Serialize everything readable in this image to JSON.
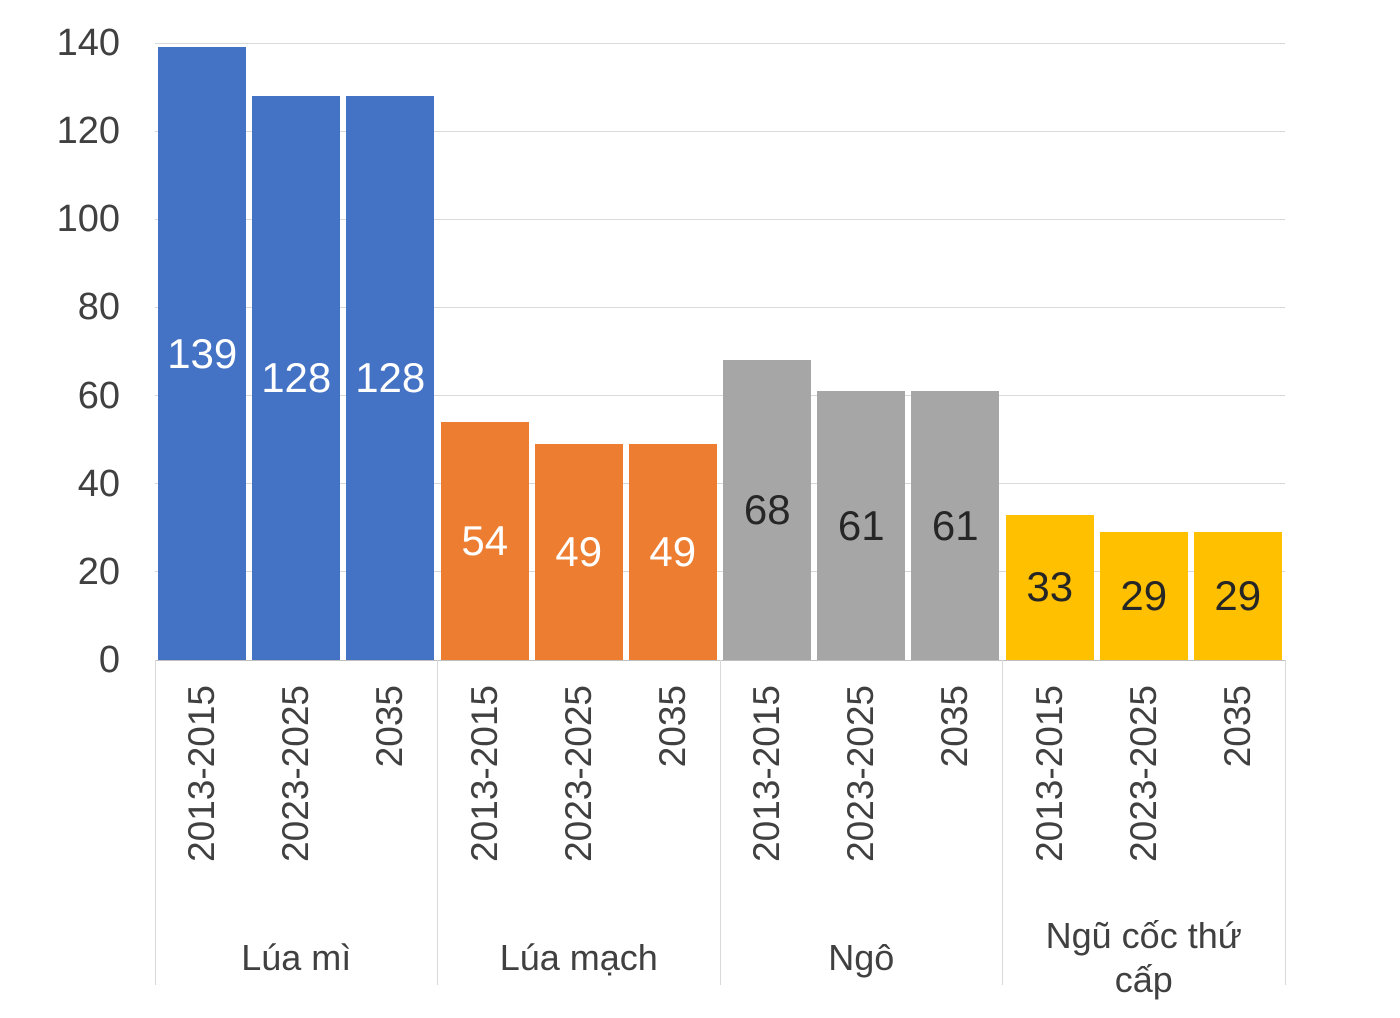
{
  "chart_data": {
    "type": "bar",
    "title": "",
    "categories": [
      "2013-2015",
      "2023-2025",
      "2035"
    ],
    "groups": [
      {
        "label": "Lúa mì",
        "color": "#4472C4",
        "value_label_color": "#FFFFFF",
        "values": [
          139,
          128,
          128
        ]
      },
      {
        "label": "Lúa mạch",
        "color": "#ED7D31",
        "value_label_color": "#FFFFFF",
        "values": [
          54,
          49,
          49
        ]
      },
      {
        "label": "Ngô",
        "color": "#A6A6A6",
        "value_label_color": "#262626",
        "values": [
          68,
          61,
          61
        ]
      },
      {
        "label": "Ngũ cốc thứ cấp",
        "color": "#FFC000",
        "value_label_color": "#262626",
        "values": [
          33,
          29,
          29
        ]
      }
    ],
    "y_axis": {
      "min": 0,
      "max": 140,
      "step": 20,
      "tick_labels": [
        "0",
        "20",
        "40",
        "60",
        "80",
        "100",
        "120",
        "140"
      ]
    },
    "grid": true,
    "legend": "none",
    "data_labels": "center",
    "grid_color": "#D9D9D9",
    "axis_line_color": "#BFBFBF",
    "text_color": "#404040"
  }
}
